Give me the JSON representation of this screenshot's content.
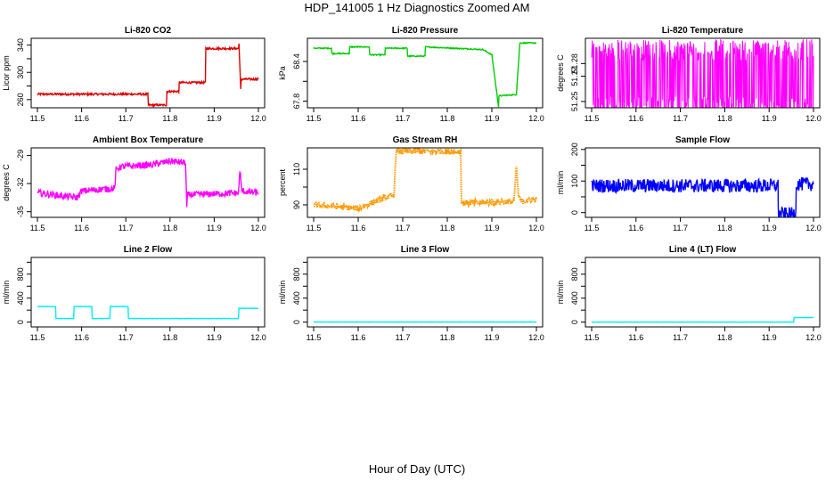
{
  "title": "HDP_141005  1 Hz Diagnostics Zoomed AM",
  "xlabel": "Hour of Day (UTC)",
  "chart_data": [
    {
      "type": "line",
      "title": "Li-820 CO2",
      "ylabel": "Licor ppm",
      "color": "#dd0000",
      "xlim": [
        11.5,
        12.0
      ],
      "ylim": [
        248,
        350
      ],
      "xticks": [
        11.5,
        11.6,
        11.7,
        11.8,
        11.9,
        12.0
      ],
      "xtick_labels": [
        "11.5",
        "11.6",
        "11.7",
        "11.8",
        "11.9",
        "12.0"
      ],
      "yticks": [
        260,
        280,
        300,
        320,
        340
      ],
      "ytick_labels": [
        "260",
        "",
        "300",
        "",
        "340"
      ],
      "x": [
        11.5,
        11.75,
        11.751,
        11.792,
        11.793,
        11.82,
        11.821,
        11.88,
        11.881,
        11.955,
        11.956,
        11.96,
        11.961,
        12.0
      ],
      "y": [
        268,
        268,
        252,
        252,
        272,
        272,
        285,
        285,
        335,
        335,
        342,
        275,
        290,
        290
      ],
      "noise": 1.5
    },
    {
      "type": "line",
      "title": "Li-820 Pressure",
      "ylabel": "kPa",
      "color": "#00cc00",
      "xlim": [
        11.5,
        12.0
      ],
      "ylim": [
        67.7,
        68.75
      ],
      "xticks": [
        11.5,
        11.6,
        11.7,
        11.8,
        11.9,
        12.0
      ],
      "xtick_labels": [
        "11.5",
        "11.6",
        "11.7",
        "11.8",
        "11.9",
        "12.0"
      ],
      "yticks": [
        67.8,
        68.1,
        68.4
      ],
      "ytick_labels": [
        "67.8",
        "",
        "68.4"
      ],
      "x": [
        11.5,
        11.54,
        11.541,
        11.58,
        11.581,
        11.625,
        11.626,
        11.66,
        11.661,
        11.71,
        11.711,
        11.75,
        11.751,
        11.88,
        11.9,
        11.915,
        11.916,
        11.955,
        11.963,
        12.0
      ],
      "y": [
        68.6,
        68.6,
        68.52,
        68.52,
        68.62,
        68.62,
        68.5,
        68.5,
        68.6,
        68.6,
        68.48,
        68.48,
        68.62,
        68.58,
        68.5,
        67.72,
        67.88,
        67.9,
        68.68,
        68.68
      ],
      "noise": 0.008
    },
    {
      "type": "line",
      "title": "Li-820 Temperature",
      "ylabel": "degrees C",
      "color": "#ff00ff",
      "xlim": [
        11.5,
        12.0
      ],
      "ylim": [
        51.245,
        51.3
      ],
      "xticks": [
        11.5,
        11.6,
        11.7,
        11.8,
        11.9,
        12.0
      ],
      "xtick_labels": [
        "11.5",
        "11.6",
        "11.7",
        "11.8",
        "11.9",
        "12.0"
      ],
      "yticks": [
        51.25,
        51.27,
        51.28
      ],
      "ytick_labels": [
        "51.25",
        "51.27",
        "51.28"
      ],
      "x": [
        11.5,
        12.0
      ],
      "y": [
        51.268,
        51.268
      ],
      "noise": 0.024,
      "band": true
    },
    {
      "type": "line",
      "title": "Ambient Box Temperature",
      "ylabel": "degrees C",
      "color": "#ff00ff",
      "xlim": [
        11.5,
        12.0
      ],
      "ylim": [
        -35.6,
        -28.2
      ],
      "xticks": [
        11.5,
        11.6,
        11.7,
        11.8,
        11.9,
        12.0
      ],
      "xtick_labels": [
        "11.5",
        "11.6",
        "11.7",
        "11.8",
        "11.9",
        "12.0"
      ],
      "yticks": [
        -35,
        -32,
        -29
      ],
      "ytick_labels": [
        "-35",
        "-32",
        "-29"
      ],
      "x": [
        11.5,
        11.59,
        11.6,
        11.675,
        11.678,
        11.69,
        11.76,
        11.8,
        11.835,
        11.838,
        11.84,
        11.955,
        11.958,
        11.962,
        12.0
      ],
      "y": [
        -33,
        -33.5,
        -32.8,
        -32.5,
        -30.5,
        -30.2,
        -30,
        -29.6,
        -29.8,
        -34.5,
        -33.2,
        -33,
        -30.5,
        -32.8,
        -33
      ],
      "noise": 0.35
    },
    {
      "type": "line",
      "title": "Gas Stream RH",
      "ylabel": "percent",
      "color": "#ff9900",
      "xlim": [
        11.5,
        12.0
      ],
      "ylim": [
        83,
        122
      ],
      "xticks": [
        11.5,
        11.6,
        11.7,
        11.8,
        11.9,
        12.0
      ],
      "xtick_labels": [
        "11.5",
        "11.6",
        "11.7",
        "11.8",
        "11.9",
        "12.0"
      ],
      "yticks": [
        90,
        100,
        110
      ],
      "ytick_labels": [
        "90",
        "",
        "110"
      ],
      "x": [
        11.5,
        11.6,
        11.66,
        11.68,
        11.685,
        11.83,
        11.832,
        11.95,
        11.955,
        11.96,
        11.965,
        12.0
      ],
      "y": [
        90,
        88,
        94,
        95,
        120,
        120,
        91,
        92,
        112,
        95,
        92,
        93
      ],
      "noise": 1.6,
      "dotted": true
    },
    {
      "type": "line",
      "title": "Sample Flow",
      "ylabel": "ml/min",
      "color": "#0000ff",
      "xlim": [
        11.5,
        12.0
      ],
      "ylim": [
        -15,
        205
      ],
      "xticks": [
        11.5,
        11.6,
        11.7,
        11.8,
        11.9,
        12.0
      ],
      "xtick_labels": [
        "11.5",
        "11.6",
        "11.7",
        "11.8",
        "11.9",
        "12.0"
      ],
      "yticks": [
        0,
        50,
        100,
        150,
        200
      ],
      "ytick_labels": [
        "0",
        "",
        "100",
        "",
        "200"
      ],
      "x": [
        11.5,
        11.92,
        11.921,
        11.96,
        11.961,
        12.0
      ],
      "y": [
        85,
        85,
        -5,
        -5,
        90,
        90
      ],
      "noise": 22
    },
    {
      "type": "line",
      "title": "Line 2 Flow",
      "ylabel": "ml/min",
      "color": "#00eeee",
      "xlim": [
        11.5,
        12.0
      ],
      "ylim": [
        -80,
        1080
      ],
      "xticks": [
        11.5,
        11.6,
        11.7,
        11.8,
        11.9,
        12.0
      ],
      "xtick_labels": [
        "11.5",
        "11.6",
        "11.7",
        "11.8",
        "11.9",
        "12.0"
      ],
      "yticks": [
        0,
        200,
        400,
        600,
        800,
        1000
      ],
      "ytick_labels": [
        "0",
        "",
        "400",
        "",
        "800",
        ""
      ],
      "x": [
        11.5,
        11.541,
        11.542,
        11.582,
        11.583,
        11.623,
        11.624,
        11.664,
        11.665,
        11.705,
        11.706,
        11.955,
        11.956,
        12.0
      ],
      "y": [
        260,
        260,
        60,
        60,
        260,
        260,
        60,
        60,
        260,
        260,
        60,
        60,
        230,
        230
      ],
      "noise": 3
    },
    {
      "type": "line",
      "title": "Line 3 Flow",
      "ylabel": "ml/min",
      "color": "#00eeee",
      "xlim": [
        11.5,
        12.0
      ],
      "ylim": [
        -80,
        1080
      ],
      "xticks": [
        11.5,
        11.6,
        11.7,
        11.8,
        11.9,
        12.0
      ],
      "xtick_labels": [
        "11.5",
        "11.6",
        "11.7",
        "11.8",
        "11.9",
        "12.0"
      ],
      "yticks": [
        0,
        200,
        400,
        600,
        800,
        1000
      ],
      "ytick_labels": [
        "0",
        "",
        "400",
        "",
        "800",
        ""
      ],
      "x": [
        11.5,
        12.0
      ],
      "y": [
        2,
        2
      ],
      "noise": 2
    },
    {
      "type": "line",
      "title": "Line 4 (LT) Flow",
      "ylabel": "ml/min",
      "color": "#00eeee",
      "xlim": [
        11.5,
        12.0
      ],
      "ylim": [
        -80,
        1080
      ],
      "xticks": [
        11.5,
        11.6,
        11.7,
        11.8,
        11.9,
        12.0
      ],
      "xtick_labels": [
        "11.5",
        "11.6",
        "11.7",
        "11.8",
        "11.9",
        "12.0"
      ],
      "yticks": [
        0,
        200,
        400,
        600,
        800,
        1000
      ],
      "ytick_labels": [
        "0",
        "",
        "400",
        "",
        "800",
        ""
      ],
      "x": [
        11.5,
        11.955,
        11.956,
        12.0
      ],
      "y": [
        0,
        0,
        75,
        75
      ],
      "noise": 2
    }
  ]
}
